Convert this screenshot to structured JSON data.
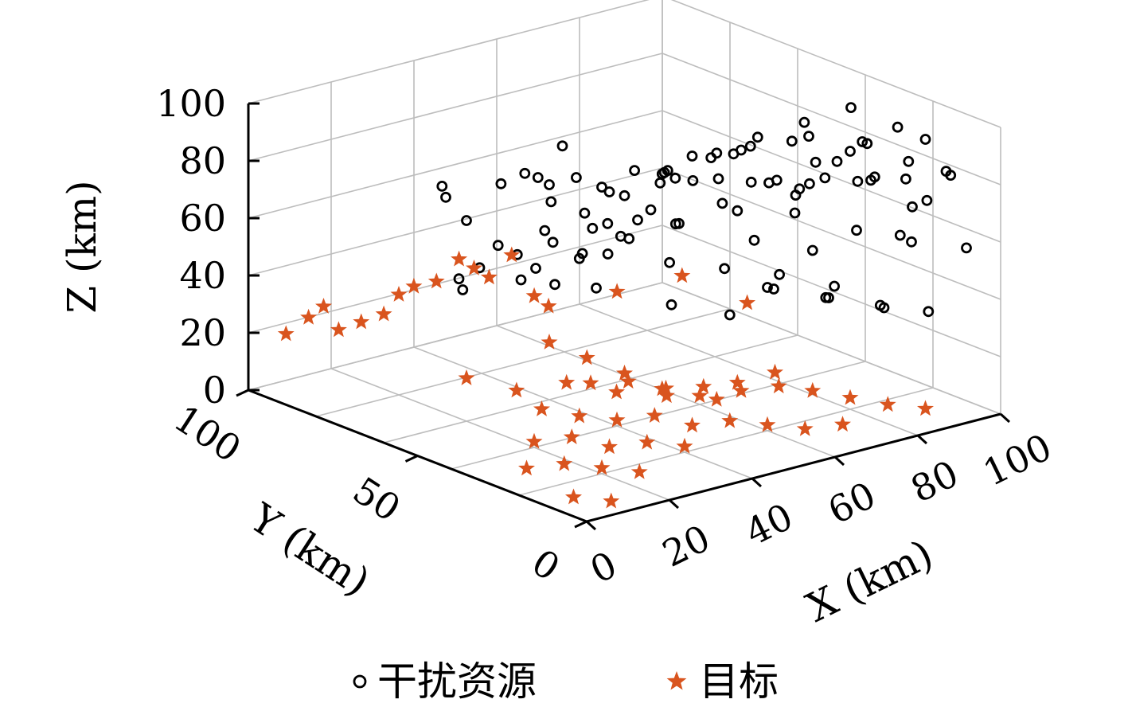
{
  "chart_data": {
    "type": "scatter3d",
    "xlabel": "X (km)",
    "ylabel": "Y (km)",
    "zlabel": "Z (km)",
    "xlim": [
      0,
      100
    ],
    "ylim": [
      0,
      100
    ],
    "zlim": [
      0,
      100
    ],
    "x_ticks": [
      "0",
      "20",
      "40",
      "60",
      "80",
      "100"
    ],
    "y_ticks": [
      "0",
      "50",
      "100"
    ],
    "z_ticks": [
      "0",
      "20",
      "40",
      "60",
      "80",
      "100"
    ],
    "grid": true,
    "legend_position": "bottom-center",
    "series": [
      {
        "name": "干扰资源",
        "marker": "circle",
        "color": "#000000",
        "points": [
          [
            10,
            55,
            88
          ],
          [
            15,
            60,
            80
          ],
          [
            20,
            60,
            70
          ],
          [
            30,
            55,
            85
          ],
          [
            40,
            60,
            75
          ],
          [
            25,
            45,
            90
          ],
          [
            35,
            50,
            95
          ],
          [
            50,
            55,
            60
          ],
          [
            45,
            40,
            70
          ],
          [
            55,
            45,
            80
          ],
          [
            60,
            35,
            90
          ],
          [
            70,
            40,
            85
          ],
          [
            80,
            35,
            70
          ],
          [
            85,
            30,
            80
          ],
          [
            90,
            25,
            75
          ],
          [
            95,
            20,
            65
          ],
          [
            65,
            30,
            60
          ],
          [
            75,
            25,
            55
          ],
          [
            88,
            15,
            60
          ],
          [
            92,
            12,
            72
          ],
          [
            60,
            20,
            50
          ],
          [
            70,
            15,
            45
          ],
          [
            80,
            10,
            40
          ],
          [
            55,
            25,
            40
          ],
          [
            45,
            30,
            45
          ],
          [
            35,
            40,
            50
          ],
          [
            25,
            40,
            55
          ],
          [
            15,
            50,
            60
          ],
          [
            20,
            45,
            65
          ],
          [
            30,
            35,
            75
          ],
          [
            40,
            30,
            80
          ],
          [
            50,
            35,
            85
          ],
          [
            60,
            30,
            92
          ],
          [
            70,
            25,
            95
          ],
          [
            80,
            20,
            90
          ],
          [
            90,
            15,
            85
          ],
          [
            95,
            10,
            82
          ],
          [
            85,
            20,
            78
          ],
          [
            75,
            30,
            72
          ],
          [
            65,
            35,
            68
          ],
          [
            55,
            40,
            65
          ],
          [
            45,
            45,
            62
          ],
          [
            35,
            45,
            58
          ],
          [
            25,
            50,
            52
          ],
          [
            15,
            55,
            50
          ],
          [
            10,
            50,
            58
          ],
          [
            20,
            35,
            88
          ],
          [
            30,
            30,
            90
          ],
          [
            40,
            25,
            96
          ],
          [
            50,
            30,
            95
          ],
          [
            60,
            25,
            97
          ],
          [
            70,
            20,
            99
          ],
          [
            80,
            15,
            95
          ],
          [
            90,
            10,
            95
          ],
          [
            12,
            40,
            95
          ],
          [
            22,
            30,
            98
          ],
          [
            32,
            25,
            99
          ],
          [
            42,
            20,
            94
          ],
          [
            52,
            15,
            92
          ],
          [
            62,
            10,
            90
          ],
          [
            72,
            8,
            88
          ],
          [
            82,
            6,
            86
          ],
          [
            92,
            5,
            84
          ],
          [
            65,
            18,
            75
          ],
          [
            75,
            12,
            68
          ],
          [
            85,
            8,
            62
          ],
          [
            95,
            4,
            58
          ],
          [
            55,
            12,
            55
          ],
          [
            65,
            8,
            50
          ],
          [
            75,
            5,
            45
          ],
          [
            85,
            3,
            40
          ],
          [
            48,
            18,
            62
          ],
          [
            58,
            14,
            58
          ],
          [
            68,
            10,
            52
          ],
          [
            38,
            22,
            66
          ],
          [
            28,
            28,
            70
          ],
          [
            18,
            32,
            76
          ],
          [
            50,
            50,
            72
          ],
          [
            42,
            52,
            68
          ],
          [
            34,
            54,
            64
          ],
          [
            26,
            58,
            60
          ],
          [
            58,
            48,
            78
          ],
          [
            66,
            44,
            82
          ],
          [
            74,
            40,
            88
          ],
          [
            82,
            36,
            92
          ],
          [
            90,
            32,
            96
          ],
          [
            98,
            28,
            88
          ],
          [
            96,
            36,
            80
          ],
          [
            88,
            40,
            74
          ],
          [
            80,
            44,
            68
          ],
          [
            72,
            48,
            62
          ],
          [
            64,
            52,
            56
          ],
          [
            56,
            56,
            52
          ],
          [
            48,
            60,
            48
          ],
          [
            40,
            64,
            44
          ],
          [
            20,
            20,
            100
          ],
          [
            30,
            15,
            100
          ],
          [
            40,
            10,
            100
          ],
          [
            50,
            5,
            98
          ],
          [
            60,
            3,
            96
          ]
        ]
      },
      {
        "name": "目标",
        "marker": "star",
        "color": "#d9541e",
        "points": [
          [
            10,
            90,
            30
          ],
          [
            15,
            85,
            25
          ],
          [
            20,
            80,
            35
          ],
          [
            25,
            75,
            40
          ],
          [
            30,
            70,
            45
          ],
          [
            35,
            65,
            50
          ],
          [
            5,
            95,
            20
          ],
          [
            12,
            88,
            22
          ],
          [
            18,
            82,
            28
          ],
          [
            22,
            78,
            38
          ],
          [
            28,
            72,
            48
          ],
          [
            32,
            68,
            42
          ],
          [
            38,
            62,
            36
          ],
          [
            8,
            92,
            26
          ],
          [
            40,
            60,
            20
          ],
          [
            45,
            55,
            15
          ],
          [
            50,
            50,
            10
          ],
          [
            55,
            45,
            5
          ],
          [
            60,
            40,
            3
          ],
          [
            65,
            35,
            8
          ],
          [
            70,
            30,
            12
          ],
          [
            75,
            25,
            6
          ],
          [
            80,
            20,
            4
          ],
          [
            85,
            15,
            2
          ],
          [
            90,
            10,
            1
          ],
          [
            30,
            50,
            5
          ],
          [
            35,
            45,
            3
          ],
          [
            40,
            40,
            2
          ],
          [
            45,
            35,
            4
          ],
          [
            50,
            30,
            1
          ],
          [
            55,
            25,
            3
          ],
          [
            60,
            20,
            2
          ],
          [
            65,
            15,
            1
          ],
          [
            70,
            10,
            3
          ],
          [
            20,
            40,
            2
          ],
          [
            25,
            35,
            4
          ],
          [
            30,
            30,
            1
          ],
          [
            35,
            25,
            3
          ],
          [
            40,
            20,
            2
          ],
          [
            10,
            30,
            1
          ],
          [
            15,
            25,
            3
          ],
          [
            20,
            20,
            2
          ],
          [
            25,
            15,
            1
          ],
          [
            5,
            10,
            2
          ],
          [
            10,
            5,
            1
          ],
          [
            50,
            60,
            2
          ],
          [
            55,
            55,
            3
          ],
          [
            60,
            50,
            1
          ],
          [
            65,
            45,
            2
          ],
          [
            70,
            40,
            1
          ],
          [
            75,
            35,
            3
          ],
          [
            48,
            70,
            25
          ],
          [
            58,
            62,
            30
          ],
          [
            68,
            55,
            35
          ],
          [
            78,
            48,
            25
          ],
          [
            20,
            60,
            15
          ],
          [
            28,
            55,
            10
          ],
          [
            36,
            50,
            12
          ],
          [
            44,
            45,
            8
          ],
          [
            52,
            40,
            6
          ],
          [
            60,
            35,
            4
          ]
        ]
      }
    ]
  }
}
